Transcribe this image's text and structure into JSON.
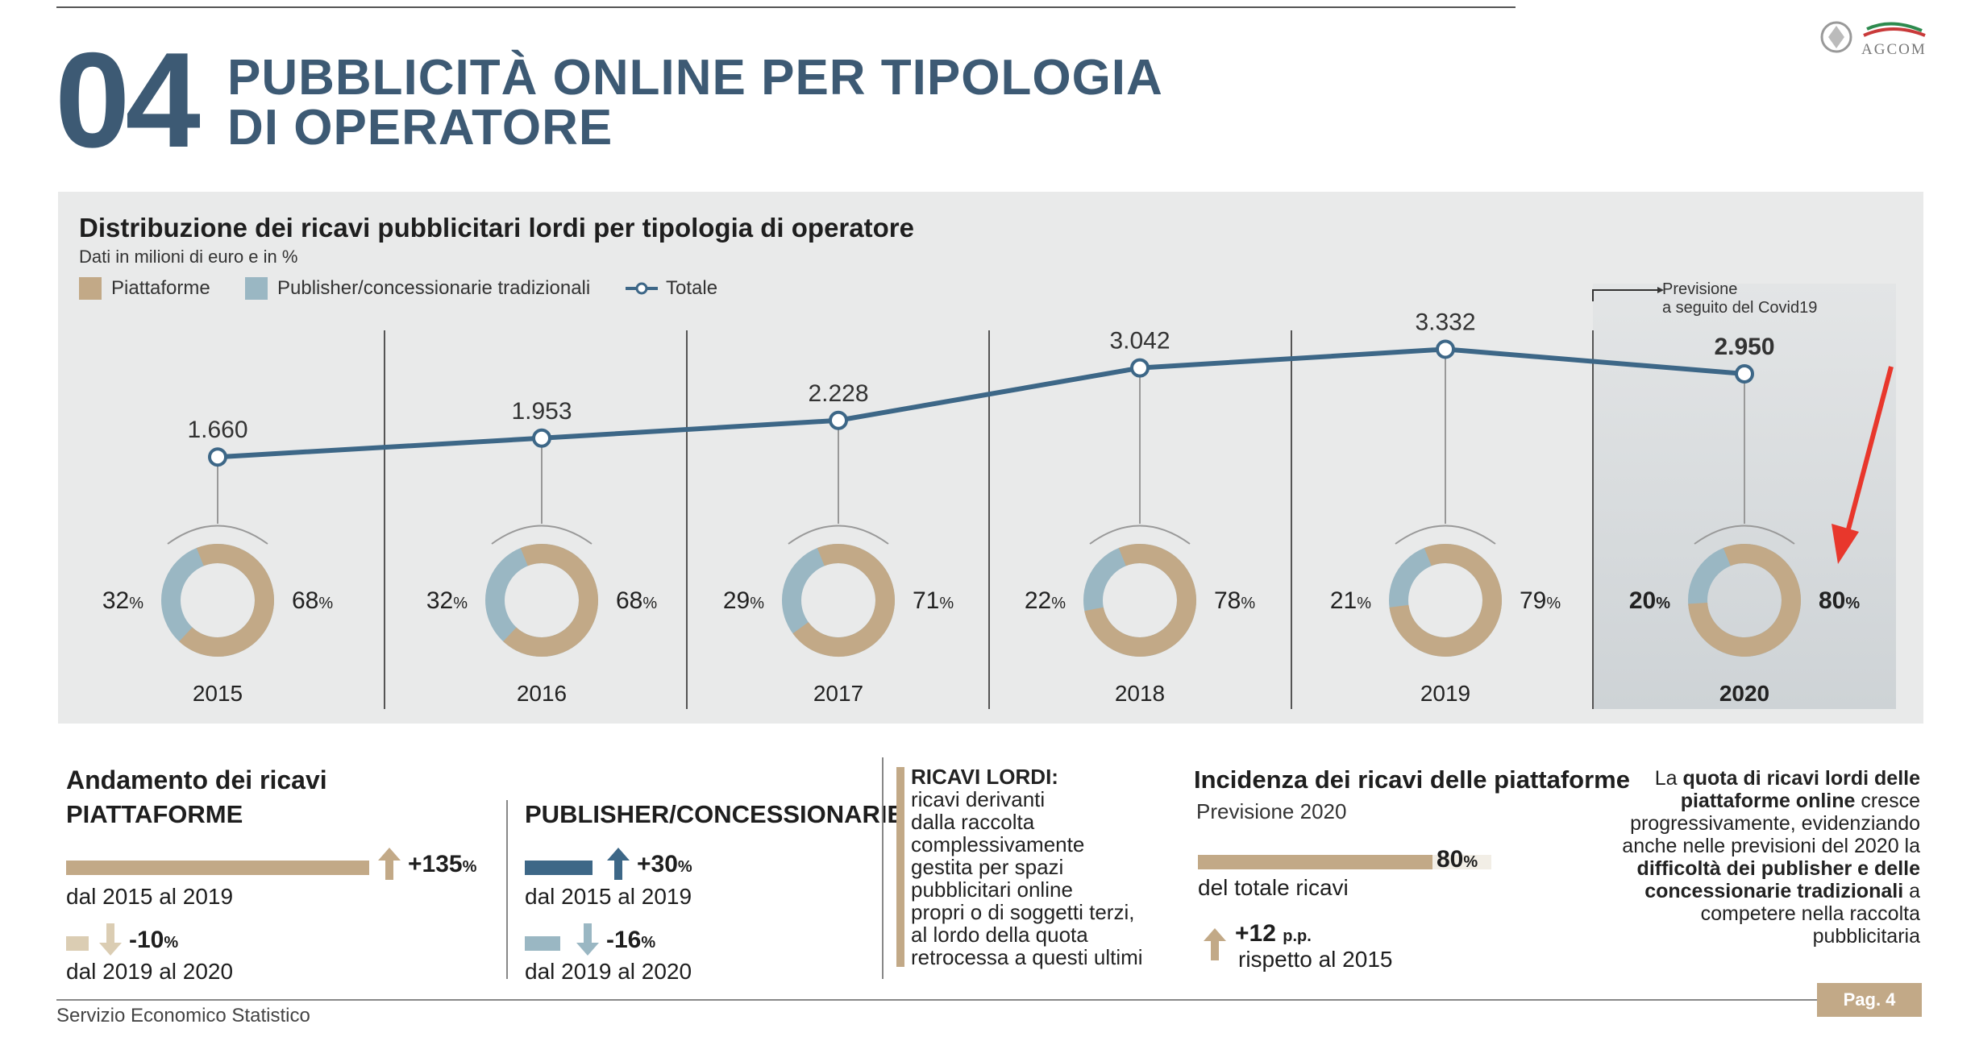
{
  "header": {
    "number": "04",
    "title_line1": "PUBBLICITÀ ONLINE PER TIPOLOGIA",
    "title_line2": "DI OPERATORE",
    "logo_text": "AGCOM"
  },
  "chart": {
    "title": "Distribuzione dei ricavi pubblicitari lordi per tipologia di operatore",
    "subtitle": "Dati in milioni di euro e in %",
    "legend": [
      "Piattaforme",
      "Publisher/concessionarie tradizionali",
      "Totale"
    ],
    "forecast_line1": "Previsione",
    "forecast_line2": "a seguito del Covid19"
  },
  "chart_data": {
    "type": "line",
    "x": [
      "2015",
      "2016",
      "2017",
      "2018",
      "2019",
      "2020"
    ],
    "totals": [
      1660,
      1953,
      2228,
      3042,
      3332,
      2950
    ],
    "total_labels": [
      "1.660",
      "1.953",
      "2.228",
      "3.042",
      "3.332",
      "2.950"
    ],
    "piattaforme_pct": [
      68,
      68,
      71,
      78,
      79,
      80
    ],
    "publisher_pct": [
      32,
      32,
      29,
      22,
      21,
      20
    ],
    "forecast_year": "2020",
    "colors": {
      "piattaforme": "#c2a987",
      "publisher": "#9ab7c3",
      "totale": "#3d6787"
    },
    "pct_sign": "%"
  },
  "bottom": {
    "andamento_title": "Andamento dei ricavi",
    "piattaforme_label": "PIATTAFORME",
    "publisher_label": "PUBLISHER/CONCESSIONARIE",
    "piat_up_value": "+135",
    "piat_up_period": "dal 2015 al 2019",
    "piat_down_value": "-10",
    "piat_down_period": "dal 2019 al 2020",
    "pub_up_value": "+30",
    "pub_up_period": "dal 2015 al 2019",
    "pub_down_value": "-16",
    "pub_down_period": "dal 2019 al 2020",
    "pct": "%",
    "ricavi_title": "RICAVI LORDI:",
    "ricavi_text": [
      "ricavi derivanti",
      "dalla raccolta",
      "complessivamente",
      "gestita per spazi",
      "pubblicitari online",
      "propri o di soggetti terzi,",
      "al lordo della quota",
      "retrocessa a questi ultimi"
    ],
    "incidenza_title": "Incidenza dei ricavi delle piattaforme",
    "incidenza_sub": "Previsione 2020",
    "incidenza_value": "80",
    "incidenza_value_num": 80,
    "incidenza_label": "del totale ricavi",
    "pp_value": "+12",
    "pp_unit": "p.p.",
    "pp_label": "rispetto al 2015",
    "right_text": {
      "t1": "La ",
      "b1": "quota di ricavi lordi delle piattaforme online",
      "t2": " cresce progressivamente, evidenziando anche nelle previsioni del 2020 la ",
      "b2": "difficoltà dei publisher e delle concessionarie tradizionali",
      "t3": " a competere nella raccolta pubblicitaria"
    }
  },
  "footer": {
    "label": "Servizio Economico Statistico",
    "page": "Pag. 4"
  }
}
